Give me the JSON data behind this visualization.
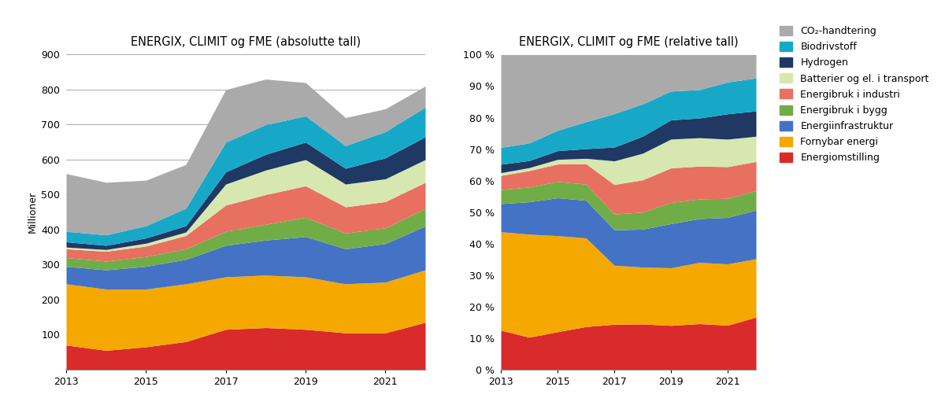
{
  "years": [
    2013,
    2014,
    2015,
    2016,
    2017,
    2018,
    2019,
    2020,
    2021,
    2022
  ],
  "title_abs": "ENERGIX, CLIMIT og FME (absolutte tall)",
  "title_rel": "ENERGIX, CLIMIT og FME (relative tall)",
  "ylabel_abs": "Millioner",
  "series": {
    "Energiomstilling": [
      70,
      55,
      65,
      80,
      115,
      120,
      115,
      105,
      105,
      135
    ],
    "Fornybar energi": [
      175,
      175,
      165,
      165,
      150,
      150,
      150,
      140,
      145,
      150
    ],
    "Energiinfrastruktur": [
      50,
      55,
      65,
      70,
      90,
      100,
      115,
      100,
      110,
      125
    ],
    "Energibruk i bygg": [
      25,
      25,
      28,
      30,
      40,
      45,
      55,
      45,
      45,
      50
    ],
    "Energibruk i industri": [
      25,
      28,
      30,
      38,
      75,
      85,
      90,
      75,
      75,
      75
    ],
    "Batterier og el. i transport": [
      5,
      5,
      8,
      10,
      60,
      70,
      75,
      65,
      65,
      65
    ],
    "Hydrogen": [
      15,
      12,
      15,
      18,
      35,
      45,
      50,
      45,
      60,
      65
    ],
    "Biodrivstoff": [
      30,
      30,
      35,
      50,
      85,
      85,
      75,
      65,
      75,
      85
    ],
    "CO2-handtering": [
      165,
      150,
      130,
      125,
      150,
      130,
      95,
      80,
      65,
      60
    ]
  },
  "colors": {
    "Energiomstilling": "#d92b2b",
    "Fornybar energi": "#f5a800",
    "Energiinfrastruktur": "#4472c4",
    "Energibruk i bygg": "#70ad47",
    "Energibruk i industri": "#e87060",
    "Batterier og el. i transport": "#d6e8b0",
    "Hydrogen": "#1f3864",
    "Biodrivstoff": "#17a8c8",
    "CO2-handtering": "#aaaaaa"
  },
  "legend_labels": [
    "CO₂-handtering",
    "Biodrivstoff",
    "Hydrogen",
    "Batterier og el. i transport",
    "Energibruk i industri",
    "Energibruk i bygg",
    "Energiinfrastruktur",
    "Fornybar energi",
    "Energiomstilling"
  ],
  "legend_colors": [
    "#aaaaaa",
    "#17a8c8",
    "#1f3864",
    "#d6e8b0",
    "#e87060",
    "#70ad47",
    "#4472c4",
    "#f5a800",
    "#d92b2b"
  ],
  "ylim_abs": [
    0,
    900
  ],
  "yticks_abs": [
    0,
    100,
    200,
    300,
    400,
    500,
    600,
    700,
    800,
    900
  ],
  "yticks_rel": [
    0.0,
    0.1,
    0.2,
    0.3,
    0.4,
    0.5,
    0.6,
    0.7,
    0.8,
    0.9,
    1.0
  ],
  "background_color": "#ffffff",
  "figsize": [
    12.0,
    5.34
  ],
  "dpi": 100
}
